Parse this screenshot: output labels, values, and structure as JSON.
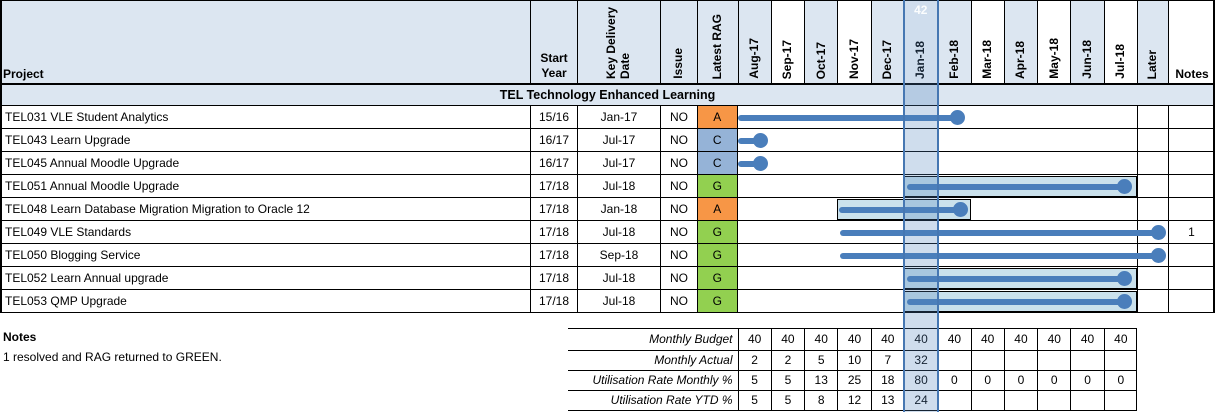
{
  "table": {
    "columns": {
      "project": "Project",
      "start_year": "Start Year",
      "key_delivery_date": "Key Delivery Date",
      "issue": "Issue",
      "latest_rag": "Latest RAG",
      "later": "Later",
      "notes": "Notes"
    },
    "months": [
      "Aug-17",
      "Sep-17",
      "Oct-17",
      "Nov-17",
      "Dec-17",
      "Jan-18",
      "Feb-18",
      "Mar-18",
      "Apr-18",
      "May-18",
      "Jun-18",
      "Jul-18"
    ],
    "section_header": "TEL Technology Enhanced Learning",
    "rows": [
      {
        "project": "TEL031 VLE Student Analytics",
        "start_year": "15/16",
        "key_delivery_date": "Jan-17",
        "issue": "NO",
        "rag": "A",
        "line": [
          0,
          6.62
        ],
        "bar": null,
        "note": ""
      },
      {
        "project": "TEL043 Learn Upgrade",
        "start_year": "16/17",
        "key_delivery_date": "Jul-17",
        "issue": "NO",
        "rag": "C",
        "line": [
          0,
          0.68
        ],
        "bar": null,
        "note": ""
      },
      {
        "project": "TEL045 Annual Moodle Upgrade",
        "start_year": "16/17",
        "key_delivery_date": "Jul-17",
        "issue": "NO",
        "rag": "C",
        "line": [
          0,
          0.68
        ],
        "bar": null,
        "note": ""
      },
      {
        "project": "TEL051 Annual Moodle Upgrade",
        "start_year": "17/18",
        "key_delivery_date": "Jul-18",
        "issue": "NO",
        "rag": "G",
        "line": [
          5.08,
          11.61
        ],
        "bar": [
          5,
          12
        ],
        "note": ""
      },
      {
        "project": "TEL048 Learn Database Migration Migration to Oracle 12",
        "start_year": "17/18",
        "key_delivery_date": "Jan-18",
        "issue": "NO",
        "rag": "A",
        "line": [
          3.05,
          6.71
        ],
        "bar": [
          3,
          7
        ],
        "note": ""
      },
      {
        "project": "TEL049 VLE Standards",
        "start_year": "17/18",
        "key_delivery_date": "Jul-18",
        "issue": "NO",
        "rag": "G",
        "line": [
          3.07,
          12.64
        ],
        "bar": null,
        "note": "1"
      },
      {
        "project": "TEL050 Blogging Service",
        "start_year": "17/18",
        "key_delivery_date": "Sep-18",
        "issue": "NO",
        "rag": "G",
        "line": [
          3.07,
          12.64
        ],
        "bar": null,
        "note": ""
      },
      {
        "project": "TEL052 Learn Annual upgrade",
        "start_year": "17/18",
        "key_delivery_date": "Jul-18",
        "issue": "NO",
        "rag": "G",
        "line": [
          5.08,
          11.61
        ],
        "bar": [
          5,
          12
        ],
        "note": ""
      },
      {
        "project": "TEL053 QMP Upgrade",
        "start_year": "17/18",
        "key_delivery_date": "Jul-18",
        "issue": "NO",
        "rag": "G",
        "line": [
          5.08,
          11.61
        ],
        "bar": [
          5,
          12
        ],
        "note": ""
      }
    ]
  },
  "highlight": {
    "label": "42",
    "month": "Jan-18"
  },
  "notes_block": {
    "title": "Notes",
    "lines": [
      "1 resolved and RAG returned to GREEN."
    ]
  },
  "bottom_table": {
    "rows": [
      {
        "label": "Monthly Budget",
        "values": [
          "40",
          "40",
          "40",
          "40",
          "40",
          "40",
          "40",
          "40",
          "40",
          "40",
          "40",
          "40"
        ],
        "flags": []
      },
      {
        "label": "Monthly Actual",
        "values": [
          "2",
          "2",
          "5",
          "10",
          "7",
          "32",
          "",
          "",
          "",
          "",
          "",
          ""
        ],
        "flags": []
      },
      {
        "label": "Utilisation Rate Monthly %",
        "values": [
          "5",
          "5",
          "13",
          "25",
          "18",
          "80",
          "0",
          "0",
          "0",
          "0",
          "0",
          "0"
        ],
        "flags": []
      },
      {
        "label": "Utilisation Rate YTD %",
        "values": [
          "5",
          "5",
          "8",
          "12",
          "13",
          "24",
          "",
          "",
          "",
          "",
          "",
          ""
        ],
        "flags": [
          1,
          2,
          3,
          4,
          5
        ]
      }
    ]
  },
  "colors": {
    "header_fill": "#DCE6F1",
    "rag_a": "#F79646",
    "rag_c": "#95B3D7",
    "rag_g": "#92D050",
    "bar_fill": "#CAE1EC",
    "line": "#4A7EBB",
    "highlight_border": "#4677B2",
    "flag_green": "#1E7145"
  }
}
